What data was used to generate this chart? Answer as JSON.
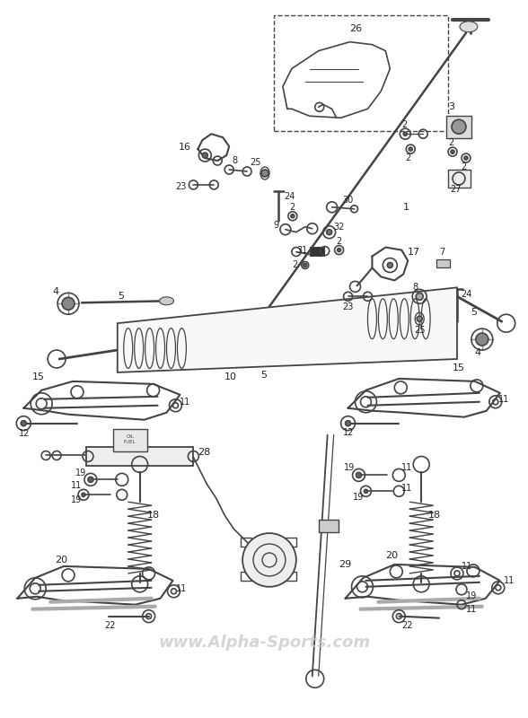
{
  "watermark": "www.Alpha-Sports.com",
  "background_color": "#ffffff",
  "line_color": "#444444",
  "text_color": "#222222",
  "fig_width": 5.88,
  "fig_height": 8.0,
  "dpi": 100
}
